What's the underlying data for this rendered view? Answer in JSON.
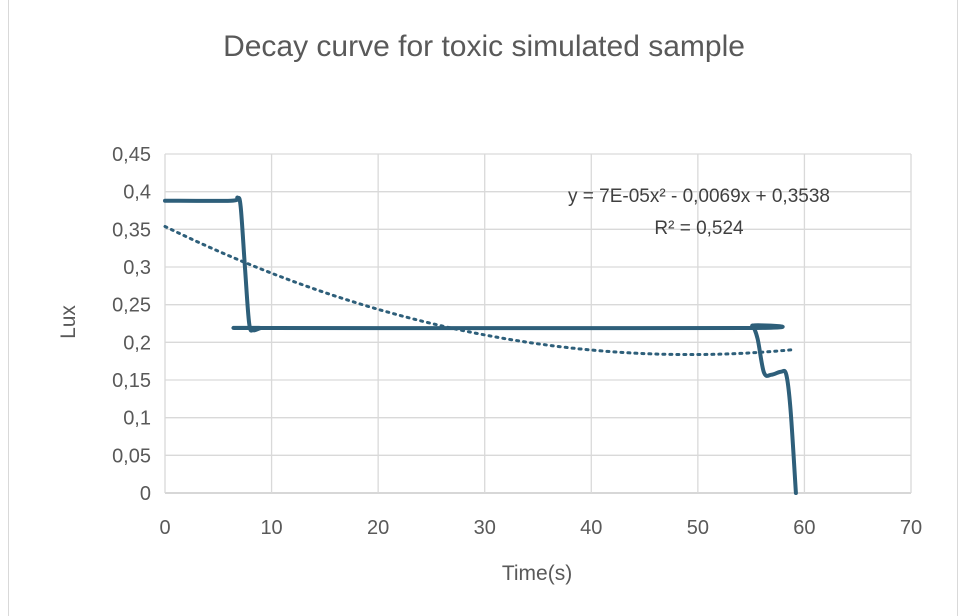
{
  "chart_data": {
    "type": "line",
    "title": "Decay curve for toxic simulated sample",
    "xlabel": "Time(s)",
    "ylabel": "Lux",
    "xlim": [
      0,
      70
    ],
    "ylim": [
      0,
      0.45
    ],
    "x_ticks": [
      "0",
      "10",
      "20",
      "30",
      "40",
      "50",
      "60",
      "70"
    ],
    "y_ticks": [
      "0",
      "0,05",
      "0,1",
      "0,15",
      "0,2",
      "0,25",
      "0,3",
      "0,35",
      "0,4",
      "0,45"
    ],
    "grid": true,
    "series": [
      {
        "color": "#2e5f7a",
        "style": "solid",
        "points": [
          [
            0,
            0.388
          ],
          [
            6.2,
            0.388
          ],
          [
            6.8,
            0.392
          ],
          [
            7.1,
            0.38
          ],
          [
            7.5,
            0.3
          ],
          [
            7.9,
            0.225
          ],
          [
            8.3,
            0.216
          ],
          [
            9,
            0.219
          ],
          [
            10,
            0.219
          ],
          [
            54.5,
            0.219
          ],
          [
            55.1,
            0.222
          ],
          [
            55.6,
            0.205
          ],
          [
            56.2,
            0.16
          ],
          [
            56.9,
            0.157
          ],
          [
            57.8,
            0.161
          ],
          [
            58.3,
            0.157
          ],
          [
            58.7,
            0.11
          ],
          [
            59.2,
            0.0
          ]
        ]
      }
    ],
    "trendline": {
      "type": "polynomial",
      "coefficients": [
        7e-05,
        -0.0069,
        0.3538
      ],
      "x_range": [
        0,
        59
      ],
      "color": "#2e5f7a",
      "style": "dotted",
      "equation_text": "y = 7E-05x² - 0,0069x + 0,3538",
      "r2_text": "R² = 0,524"
    }
  }
}
